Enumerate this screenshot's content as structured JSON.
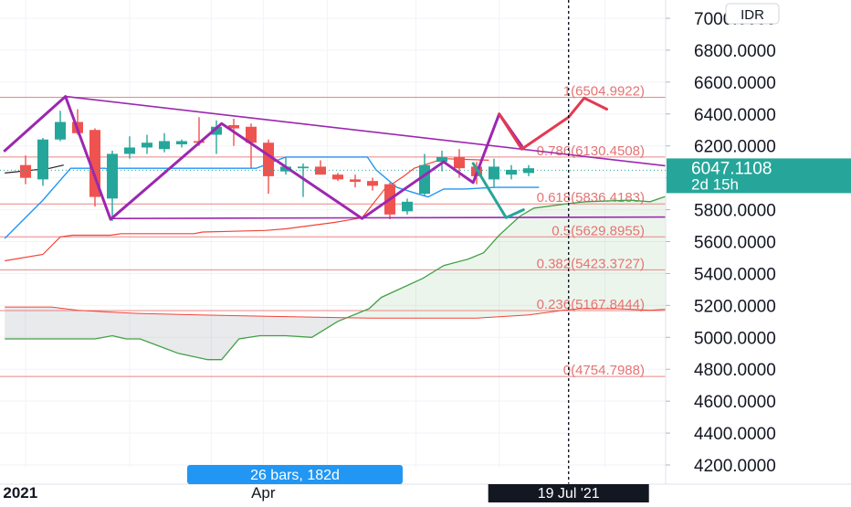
{
  "chart_data": {
    "type": "candlestick",
    "title": "",
    "currency": "IDR",
    "y_axis": {
      "ticks": [
        4200,
        4400,
        4600,
        4800,
        5000,
        5200,
        5400,
        5600,
        5800,
        6000,
        6200,
        6400,
        6600,
        6800,
        7000
      ],
      "tick_labels": [
        "4200.0000",
        "4400.0000",
        "4600.0000",
        "4800.0000",
        "5000.0000",
        "5200.0000",
        "5400.0000",
        "5600.0000",
        "5800.0000",
        "6000.0000",
        "6200.0000",
        "6400.0000",
        "6600.0000",
        "6800.0000",
        "7000.0000"
      ],
      "ylim": [
        4000,
        7150
      ],
      "position": "right"
    },
    "x_axis": {
      "labels": [
        {
          "text": "2021",
          "bar": -0.3
        },
        {
          "text": "Apr",
          "bar": 13.7
        }
      ],
      "range_bars": [
        -1.2,
        40.5
      ]
    },
    "current_price": {
      "value": 6047.1108,
      "label": "6047.1108",
      "countdown": "2d 15h",
      "color": "#26a69a"
    },
    "crosshair": {
      "bar": 31.3,
      "label": "19 Jul '21"
    },
    "measure_label": "26 bars, 182d",
    "fibonacci": {
      "color": "#e57373",
      "levels": [
        {
          "ratio": "1",
          "value": 6504.9922,
          "label": "1(6504.9922)"
        },
        {
          "ratio": "0.786",
          "value": 6130.4508,
          "label": "0.786(6130.4508)"
        },
        {
          "ratio": "0.618",
          "value": 5836.4183,
          "label": "0.618(5836.4183)"
        },
        {
          "ratio": "0.5",
          "value": 5629.8955,
          "label": "0.5(5629.8955)"
        },
        {
          "ratio": "0.382",
          "value": 5423.3727,
          "label": "0.382(5423.3727)"
        },
        {
          "ratio": "0.236",
          "value": 5167.8444,
          "label": "0.236(5167.8444)"
        },
        {
          "ratio": "0",
          "value": 4754.7988,
          "label": "0(4754.7988)"
        }
      ]
    },
    "candles": [
      {
        "i": 0,
        "o": 6080,
        "h": 6140,
        "l": 5960,
        "c": 6000
      },
      {
        "i": 1,
        "o": 5990,
        "h": 6250,
        "l": 5950,
        "c": 6240
      },
      {
        "i": 2,
        "o": 6240,
        "h": 6420,
        "l": 6230,
        "c": 6350
      },
      {
        "i": 3,
        "o": 6350,
        "h": 6430,
        "l": 6270,
        "c": 6280
      },
      {
        "i": 4,
        "o": 6300,
        "h": 6310,
        "l": 5820,
        "c": 5880
      },
      {
        "i": 5,
        "o": 5870,
        "h": 6170,
        "l": 5730,
        "c": 6150
      },
      {
        "i": 6,
        "o": 6150,
        "h": 6260,
        "l": 6120,
        "c": 6190
      },
      {
        "i": 7,
        "o": 6190,
        "h": 6270,
        "l": 6150,
        "c": 6220
      },
      {
        "i": 8,
        "o": 6180,
        "h": 6280,
        "l": 6160,
        "c": 6230
      },
      {
        "i": 9,
        "o": 6210,
        "h": 6240,
        "l": 6190,
        "c": 6230
      },
      {
        "i": 10,
        "o": 6230,
        "h": 6380,
        "l": 6200,
        "c": 6220
      },
      {
        "i": 11,
        "o": 6270,
        "h": 6360,
        "l": 6150,
        "c": 6320
      },
      {
        "i": 12,
        "o": 6330,
        "h": 6370,
        "l": 6200,
        "c": 6310
      },
      {
        "i": 13,
        "o": 6320,
        "h": 6340,
        "l": 6060,
        "c": 6220
      },
      {
        "i": 14,
        "o": 6220,
        "h": 6240,
        "l": 5900,
        "c": 6010
      },
      {
        "i": 15,
        "o": 6040,
        "h": 6130,
        "l": 6020,
        "c": 6070
      },
      {
        "i": 16,
        "o": 6060,
        "h": 6090,
        "l": 5880,
        "c": 6070
      },
      {
        "i": 17,
        "o": 6070,
        "h": 6110,
        "l": 6020,
        "c": 6020
      },
      {
        "i": 18,
        "o": 6020,
        "h": 6030,
        "l": 5980,
        "c": 5990
      },
      {
        "i": 19,
        "o": 5990,
        "h": 6020,
        "l": 5940,
        "c": 5975
      },
      {
        "i": 20,
        "o": 5980,
        "h": 6000,
        "l": 5920,
        "c": 5950
      },
      {
        "i": 21,
        "o": 5960,
        "h": 5970,
        "l": 5740,
        "c": 5770
      },
      {
        "i": 22,
        "o": 5790,
        "h": 5870,
        "l": 5770,
        "c": 5850
      },
      {
        "i": 23,
        "o": 5900,
        "h": 6150,
        "l": 5890,
        "c": 6080
      },
      {
        "i": 24,
        "o": 6100,
        "h": 6170,
        "l": 6040,
        "c": 6130
      },
      {
        "i": 25,
        "o": 6130,
        "h": 6180,
        "l": 6000,
        "c": 6060
      },
      {
        "i": 26,
        "o": 6070,
        "h": 6100,
        "l": 5960,
        "c": 6010
      },
      {
        "i": 27,
        "o": 5990,
        "h": 6120,
        "l": 5940,
        "c": 6070
      },
      {
        "i": 28,
        "o": 6020,
        "h": 6080,
        "l": 5990,
        "c": 6050
      },
      {
        "i": 29,
        "o": 6030,
        "h": 6080,
        "l": 6010,
        "c": 6060
      }
    ],
    "pattern_lines": [
      {
        "name": "zigzag",
        "color": "#9c27b0",
        "points": [
          [
            -1.2,
            6170
          ],
          [
            2.3,
            6510
          ],
          [
            4.9,
            5740
          ],
          [
            11.3,
            6340
          ],
          [
            19.4,
            5745
          ],
          [
            24.1,
            6100
          ]
        ]
      },
      {
        "name": "upper-trendline",
        "color": "#9c27b0",
        "points": [
          [
            2.3,
            6510
          ],
          [
            40.5,
            6030
          ]
        ]
      },
      {
        "name": "lower-trendline",
        "color": "#9c27b0",
        "points": [
          [
            4.9,
            5745
          ],
          [
            40.5,
            5755
          ]
        ]
      },
      {
        "name": "projection-up",
        "color": "#9c27b0",
        "points": [
          [
            24.1,
            6100
          ],
          [
            25.8,
            5970
          ],
          [
            27.3,
            6400
          ],
          [
            28.6,
            6200
          ]
        ]
      },
      {
        "name": "red-projection",
        "color": "#e53950",
        "points": [
          [
            27.3,
            6400
          ],
          [
            28.6,
            6180
          ],
          [
            31.3,
            6380
          ],
          [
            32.2,
            6500
          ],
          [
            33.5,
            6430
          ]
        ]
      },
      {
        "name": "teal-projection",
        "color": "#26a69a",
        "points": [
          [
            25.8,
            6090
          ],
          [
            27.7,
            5750
          ],
          [
            28.7,
            5800
          ]
        ]
      }
    ],
    "ichimoku": {
      "conversion_line": {
        "color": "#2196f3",
        "points": [
          [
            -1.2,
            5620
          ],
          [
            1.0,
            5860
          ],
          [
            2.6,
            6060
          ],
          [
            4.0,
            6060
          ],
          [
            4.6,
            6060
          ],
          [
            4.9,
            6050
          ],
          [
            5.3,
            6060
          ],
          [
            11.3,
            6060
          ],
          [
            13.3,
            6060
          ],
          [
            15.0,
            6130
          ],
          [
            19.7,
            6130
          ],
          [
            20.2,
            6050
          ],
          [
            21.4,
            5940
          ],
          [
            22.3,
            5910
          ],
          [
            23.2,
            5880
          ],
          [
            24.1,
            5930
          ],
          [
            25.3,
            5930
          ],
          [
            27.1,
            5940
          ],
          [
            28.6,
            5940
          ],
          [
            29.6,
            5940
          ]
        ]
      },
      "base_line": {
        "color": "#f44336",
        "points": [
          [
            -1.2,
            5480
          ],
          [
            1.0,
            5520
          ],
          [
            2.0,
            5630
          ],
          [
            2.7,
            5640
          ],
          [
            4.9,
            5640
          ],
          [
            5.5,
            5650
          ],
          [
            9.7,
            5650
          ],
          [
            10.2,
            5660
          ],
          [
            13.8,
            5670
          ],
          [
            15.0,
            5680
          ],
          [
            17.8,
            5720
          ],
          [
            19.4,
            5750
          ],
          [
            20.7,
            5930
          ],
          [
            21.8,
            6010
          ],
          [
            22.4,
            6060
          ],
          [
            24.1,
            6120
          ],
          [
            26.7,
            6110
          ]
        ]
      },
      "lagging_line": {
        "color": "#212121",
        "points": [
          [
            -1.2,
            6030
          ],
          [
            1.4,
            6060
          ],
          [
            2.2,
            6080
          ]
        ]
      },
      "span_a": {
        "color": "#43a047",
        "points": [
          [
            -1.2,
            4990
          ],
          [
            1.8,
            4990
          ],
          [
            4.0,
            4990
          ],
          [
            5.0,
            5010
          ],
          [
            5.8,
            4990
          ],
          [
            6.6,
            4990
          ],
          [
            8.8,
            4900
          ],
          [
            10.5,
            4860
          ],
          [
            11.3,
            4860
          ],
          [
            12.3,
            4990
          ],
          [
            13.5,
            5010
          ],
          [
            15.0,
            5010
          ],
          [
            16.5,
            5000
          ],
          [
            18.0,
            5100
          ],
          [
            19.8,
            5180
          ],
          [
            20.5,
            5250
          ],
          [
            21.3,
            5290
          ],
          [
            22.9,
            5370
          ],
          [
            24.1,
            5450
          ],
          [
            25.5,
            5490
          ],
          [
            26.4,
            5530
          ],
          [
            27.3,
            5640
          ],
          [
            27.9,
            5700
          ],
          [
            28.5,
            5760
          ],
          [
            29.3,
            5810
          ],
          [
            31.4,
            5840
          ],
          [
            32.3,
            5850
          ],
          [
            34.8,
            5860
          ],
          [
            36.0,
            5850
          ],
          [
            36.8,
            5880
          ],
          [
            37.6,
            5900
          ],
          [
            38.7,
            5900
          ],
          [
            39.4,
            5900
          ],
          [
            40.0,
            5900
          ],
          [
            40.5,
            5890
          ]
        ]
      },
      "span_b": {
        "color": "#f44336",
        "points": [
          [
            -1.2,
            5190
          ],
          [
            1.5,
            5190
          ],
          [
            3.0,
            5170
          ],
          [
            4.5,
            5160
          ],
          [
            6.5,
            5150
          ],
          [
            10.0,
            5140
          ],
          [
            15.0,
            5130
          ],
          [
            20.0,
            5120
          ],
          [
            26.0,
            5120
          ],
          [
            29.0,
            5140
          ],
          [
            31.0,
            5170
          ],
          [
            32.0,
            5180
          ],
          [
            34.0,
            5180
          ],
          [
            36.0,
            5170
          ],
          [
            37.5,
            5180
          ],
          [
            38.5,
            5240
          ],
          [
            39.2,
            5280
          ],
          [
            40.5,
            5340
          ]
        ]
      }
    }
  }
}
